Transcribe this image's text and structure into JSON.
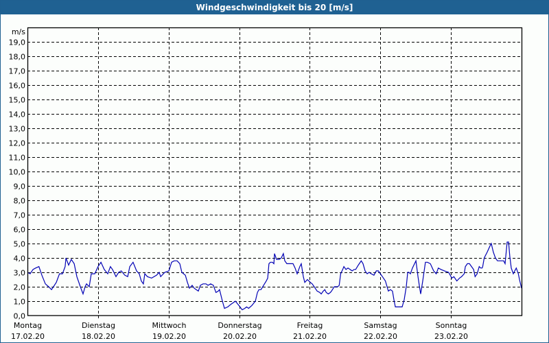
{
  "window": {
    "title": "Windgeschwindigkeit bis 20 [m/s]"
  },
  "colors": {
    "titlebar": "#1f6192",
    "line": "#0000b4",
    "frame": "#1f6090"
  },
  "chart_data": {
    "type": "line",
    "title": "Windgeschwindigkeit bis 20 [m/s]",
    "ylabel": "m/s",
    "xlabel": "",
    "ylim": [
      0,
      20
    ],
    "y_ticks": [
      "0,0",
      "1,0",
      "2,0",
      "3,0",
      "4,0",
      "5,0",
      "6,0",
      "7,0",
      "8,0",
      "9,0",
      "10,0",
      "11,0",
      "12,0",
      "13,0",
      "14,0",
      "15,0",
      "16,0",
      "17,0",
      "18,0",
      "19,0"
    ],
    "x_ticks": [
      {
        "day": "Montag",
        "date": "17.02.20"
      },
      {
        "day": "Dienstag",
        "date": "18.02.20"
      },
      {
        "day": "Mittwoch",
        "date": "19.02.20"
      },
      {
        "day": "Donnerstag",
        "date": "20.02.20"
      },
      {
        "day": "Freitag",
        "date": "21.02.20"
      },
      {
        "day": "Samstag",
        "date": "22.02.20"
      },
      {
        "day": "Sonntag",
        "date": "23.02.20"
      }
    ],
    "grid": true,
    "series": [
      {
        "name": "Windgeschwindigkeit",
        "x_unit": "hours since 17.02.20 00:00",
        "points": [
          [
            0,
            3.0
          ],
          [
            0.9,
            2.9
          ],
          [
            1.9,
            3.2
          ],
          [
            2.8,
            3.3
          ],
          [
            3.9,
            3.4
          ],
          [
            4.9,
            2.8
          ],
          [
            6.1,
            2.2
          ],
          [
            7.2,
            2.0
          ],
          [
            8.2,
            1.8
          ],
          [
            9.8,
            2.3
          ],
          [
            10.9,
            2.9
          ],
          [
            11.2,
            2.9
          ],
          [
            11.9,
            2.9
          ],
          [
            12.8,
            3.4
          ],
          [
            13.1,
            4.0
          ],
          [
            14.0,
            3.5
          ],
          [
            14.9,
            3.9
          ],
          [
            15.9,
            3.6
          ],
          [
            16.8,
            2.7
          ],
          [
            18.0,
            2.0
          ],
          [
            18.9,
            1.5
          ],
          [
            19.6,
            2.0
          ],
          [
            20.1,
            2.2
          ],
          [
            21.0,
            2.0
          ],
          [
            21.7,
            2.9
          ],
          [
            22.9,
            2.9
          ],
          [
            24.0,
            3.4
          ],
          [
            25.0,
            3.7
          ],
          [
            26.1,
            3.2
          ],
          [
            27.3,
            2.9
          ],
          [
            28.2,
            3.4
          ],
          [
            28.9,
            3.2
          ],
          [
            30.1,
            2.7
          ],
          [
            31.0,
            3.0
          ],
          [
            31.9,
            3.1
          ],
          [
            33.1,
            2.8
          ],
          [
            34.1,
            2.7
          ],
          [
            34.8,
            3.4
          ],
          [
            35.9,
            3.7
          ],
          [
            37.1,
            3.1
          ],
          [
            38.0,
            2.9
          ],
          [
            38.7,
            2.4
          ],
          [
            39.4,
            2.2
          ],
          [
            39.9,
            2.9
          ],
          [
            40.8,
            2.7
          ],
          [
            42.2,
            2.6
          ],
          [
            43.9,
            2.8
          ],
          [
            44.8,
            3.0
          ],
          [
            45.3,
            2.7
          ],
          [
            46.7,
            3.0
          ],
          [
            48.1,
            3.1
          ],
          [
            49.0,
            3.7
          ],
          [
            49.9,
            3.8
          ],
          [
            50.9,
            3.8
          ],
          [
            51.8,
            3.6
          ],
          [
            52.5,
            3.0
          ],
          [
            53.7,
            2.8
          ],
          [
            54.4,
            2.3
          ],
          [
            55.1,
            1.9
          ],
          [
            56.0,
            2.1
          ],
          [
            56.7,
            1.9
          ],
          [
            57.4,
            1.8
          ],
          [
            58.1,
            1.7
          ],
          [
            58.8,
            2.1
          ],
          [
            59.7,
            2.2
          ],
          [
            60.7,
            2.2
          ],
          [
            61.4,
            2.1
          ],
          [
            62.3,
            2.2
          ],
          [
            63.2,
            2.1
          ],
          [
            64.1,
            1.6
          ],
          [
            64.9,
            1.7
          ],
          [
            65.3,
            1.8
          ],
          [
            66.3,
            1.0
          ],
          [
            67.0,
            0.5
          ],
          [
            68.1,
            0.6
          ],
          [
            69.3,
            0.8
          ],
          [
            70.7,
            1.0
          ],
          [
            71.9,
            0.7
          ],
          [
            73.0,
            0.4
          ],
          [
            73.9,
            0.5
          ],
          [
            74.5,
            0.6
          ],
          [
            75.2,
            0.5
          ],
          [
            76.3,
            0.7
          ],
          [
            77.5,
            1.0
          ],
          [
            78.2,
            1.6
          ],
          [
            78.7,
            1.8
          ],
          [
            79.4,
            1.8
          ],
          [
            80.3,
            2.1
          ],
          [
            81.2,
            2.4
          ],
          [
            81.7,
            2.6
          ],
          [
            82.1,
            3.6
          ],
          [
            82.6,
            3.7
          ],
          [
            83.3,
            3.7
          ],
          [
            83.8,
            3.6
          ],
          [
            84.0,
            4.3
          ],
          [
            84.7,
            3.9
          ],
          [
            85.6,
            3.9
          ],
          [
            86.3,
            4.0
          ],
          [
            87.0,
            4.3
          ],
          [
            87.5,
            3.8
          ],
          [
            88.2,
            3.6
          ],
          [
            89.1,
            3.6
          ],
          [
            90.3,
            3.6
          ],
          [
            91.0,
            3.3
          ],
          [
            91.7,
            2.9
          ],
          [
            92.6,
            3.4
          ],
          [
            93.1,
            3.6
          ],
          [
            93.8,
            2.7
          ],
          [
            94.3,
            2.3
          ],
          [
            95.2,
            2.5
          ],
          [
            96.2,
            2.3
          ],
          [
            96.8,
            2.2
          ],
          [
            97.5,
            2.0
          ],
          [
            98.5,
            1.7
          ],
          [
            99.4,
            1.6
          ],
          [
            99.9,
            1.5
          ],
          [
            100.6,
            1.7
          ],
          [
            101.1,
            1.8
          ],
          [
            101.6,
            1.6
          ],
          [
            102.3,
            1.5
          ],
          [
            103.0,
            1.6
          ],
          [
            103.4,
            1.7
          ],
          [
            104.3,
            2.0
          ],
          [
            105.5,
            2.0
          ],
          [
            106.0,
            2.1
          ],
          [
            106.5,
            2.9
          ],
          [
            107.2,
            3.2
          ],
          [
            107.6,
            3.4
          ],
          [
            108.3,
            3.2
          ],
          [
            109.0,
            3.3
          ],
          [
            109.7,
            3.2
          ],
          [
            110.4,
            3.1
          ],
          [
            111.1,
            3.2
          ],
          [
            111.6,
            3.2
          ],
          [
            112.5,
            3.5
          ],
          [
            113.5,
            3.8
          ],
          [
            114.1,
            3.6
          ],
          [
            114.8,
            3.1
          ],
          [
            115.5,
            2.9
          ],
          [
            116.2,
            3.0
          ],
          [
            116.9,
            2.9
          ],
          [
            117.8,
            2.8
          ],
          [
            118.6,
            3.1
          ],
          [
            119.3,
            3.1
          ],
          [
            120.0,
            2.9
          ],
          [
            120.7,
            2.7
          ],
          [
            121.7,
            2.4
          ],
          [
            122.7,
            1.7
          ],
          [
            123.4,
            1.8
          ],
          [
            124.1,
            1.7
          ],
          [
            124.6,
            1.1
          ],
          [
            125.1,
            0.6
          ],
          [
            125.8,
            0.6
          ],
          [
            126.7,
            0.6
          ],
          [
            127.4,
            0.6
          ],
          [
            128.1,
            1.1
          ],
          [
            128.8,
            2.0
          ],
          [
            129.3,
            3.0
          ],
          [
            129.7,
            3.0
          ],
          [
            130.2,
            2.9
          ],
          [
            130.9,
            3.3
          ],
          [
            132.1,
            3.8
          ],
          [
            132.8,
            2.7
          ],
          [
            133.3,
            2.0
          ],
          [
            133.7,
            1.5
          ],
          [
            134.4,
            2.4
          ],
          [
            135.3,
            3.7
          ],
          [
            136.0,
            3.7
          ],
          [
            137.0,
            3.6
          ],
          [
            138.1,
            3.1
          ],
          [
            139.0,
            2.9
          ],
          [
            139.7,
            3.3
          ],
          [
            140.6,
            3.2
          ],
          [
            141.8,
            3.1
          ],
          [
            143.2,
            3.0
          ],
          [
            144.3,
            2.6
          ],
          [
            145.0,
            2.7
          ],
          [
            146.0,
            2.4
          ],
          [
            146.9,
            2.6
          ],
          [
            147.6,
            2.7
          ],
          [
            148.5,
            2.9
          ],
          [
            148.9,
            3.4
          ],
          [
            149.6,
            3.6
          ],
          [
            150.3,
            3.6
          ],
          [
            151.0,
            3.4
          ],
          [
            151.7,
            3.2
          ],
          [
            152.2,
            2.7
          ],
          [
            152.9,
            2.9
          ],
          [
            153.6,
            3.4
          ],
          [
            154.1,
            3.3
          ],
          [
            154.6,
            3.3
          ],
          [
            154.8,
            3.4
          ],
          [
            155.3,
            4.0
          ],
          [
            156.3,
            4.4
          ],
          [
            157.2,
            4.8
          ],
          [
            157.7,
            5.0
          ],
          [
            158.4,
            4.4
          ],
          [
            159.1,
            4.0
          ],
          [
            159.8,
            3.8
          ],
          [
            160.5,
            3.8
          ],
          [
            161.2,
            3.8
          ],
          [
            161.9,
            3.8
          ],
          [
            162.4,
            3.6
          ],
          [
            163.1,
            5.1
          ],
          [
            163.6,
            5.1
          ],
          [
            164.0,
            4.1
          ],
          [
            164.5,
            3.3
          ],
          [
            165.2,
            2.9
          ],
          [
            165.7,
            3.1
          ],
          [
            166.2,
            3.3
          ],
          [
            166.9,
            2.9
          ],
          [
            167.3,
            2.5
          ],
          [
            168.0,
            1.9
          ]
        ]
      }
    ]
  }
}
